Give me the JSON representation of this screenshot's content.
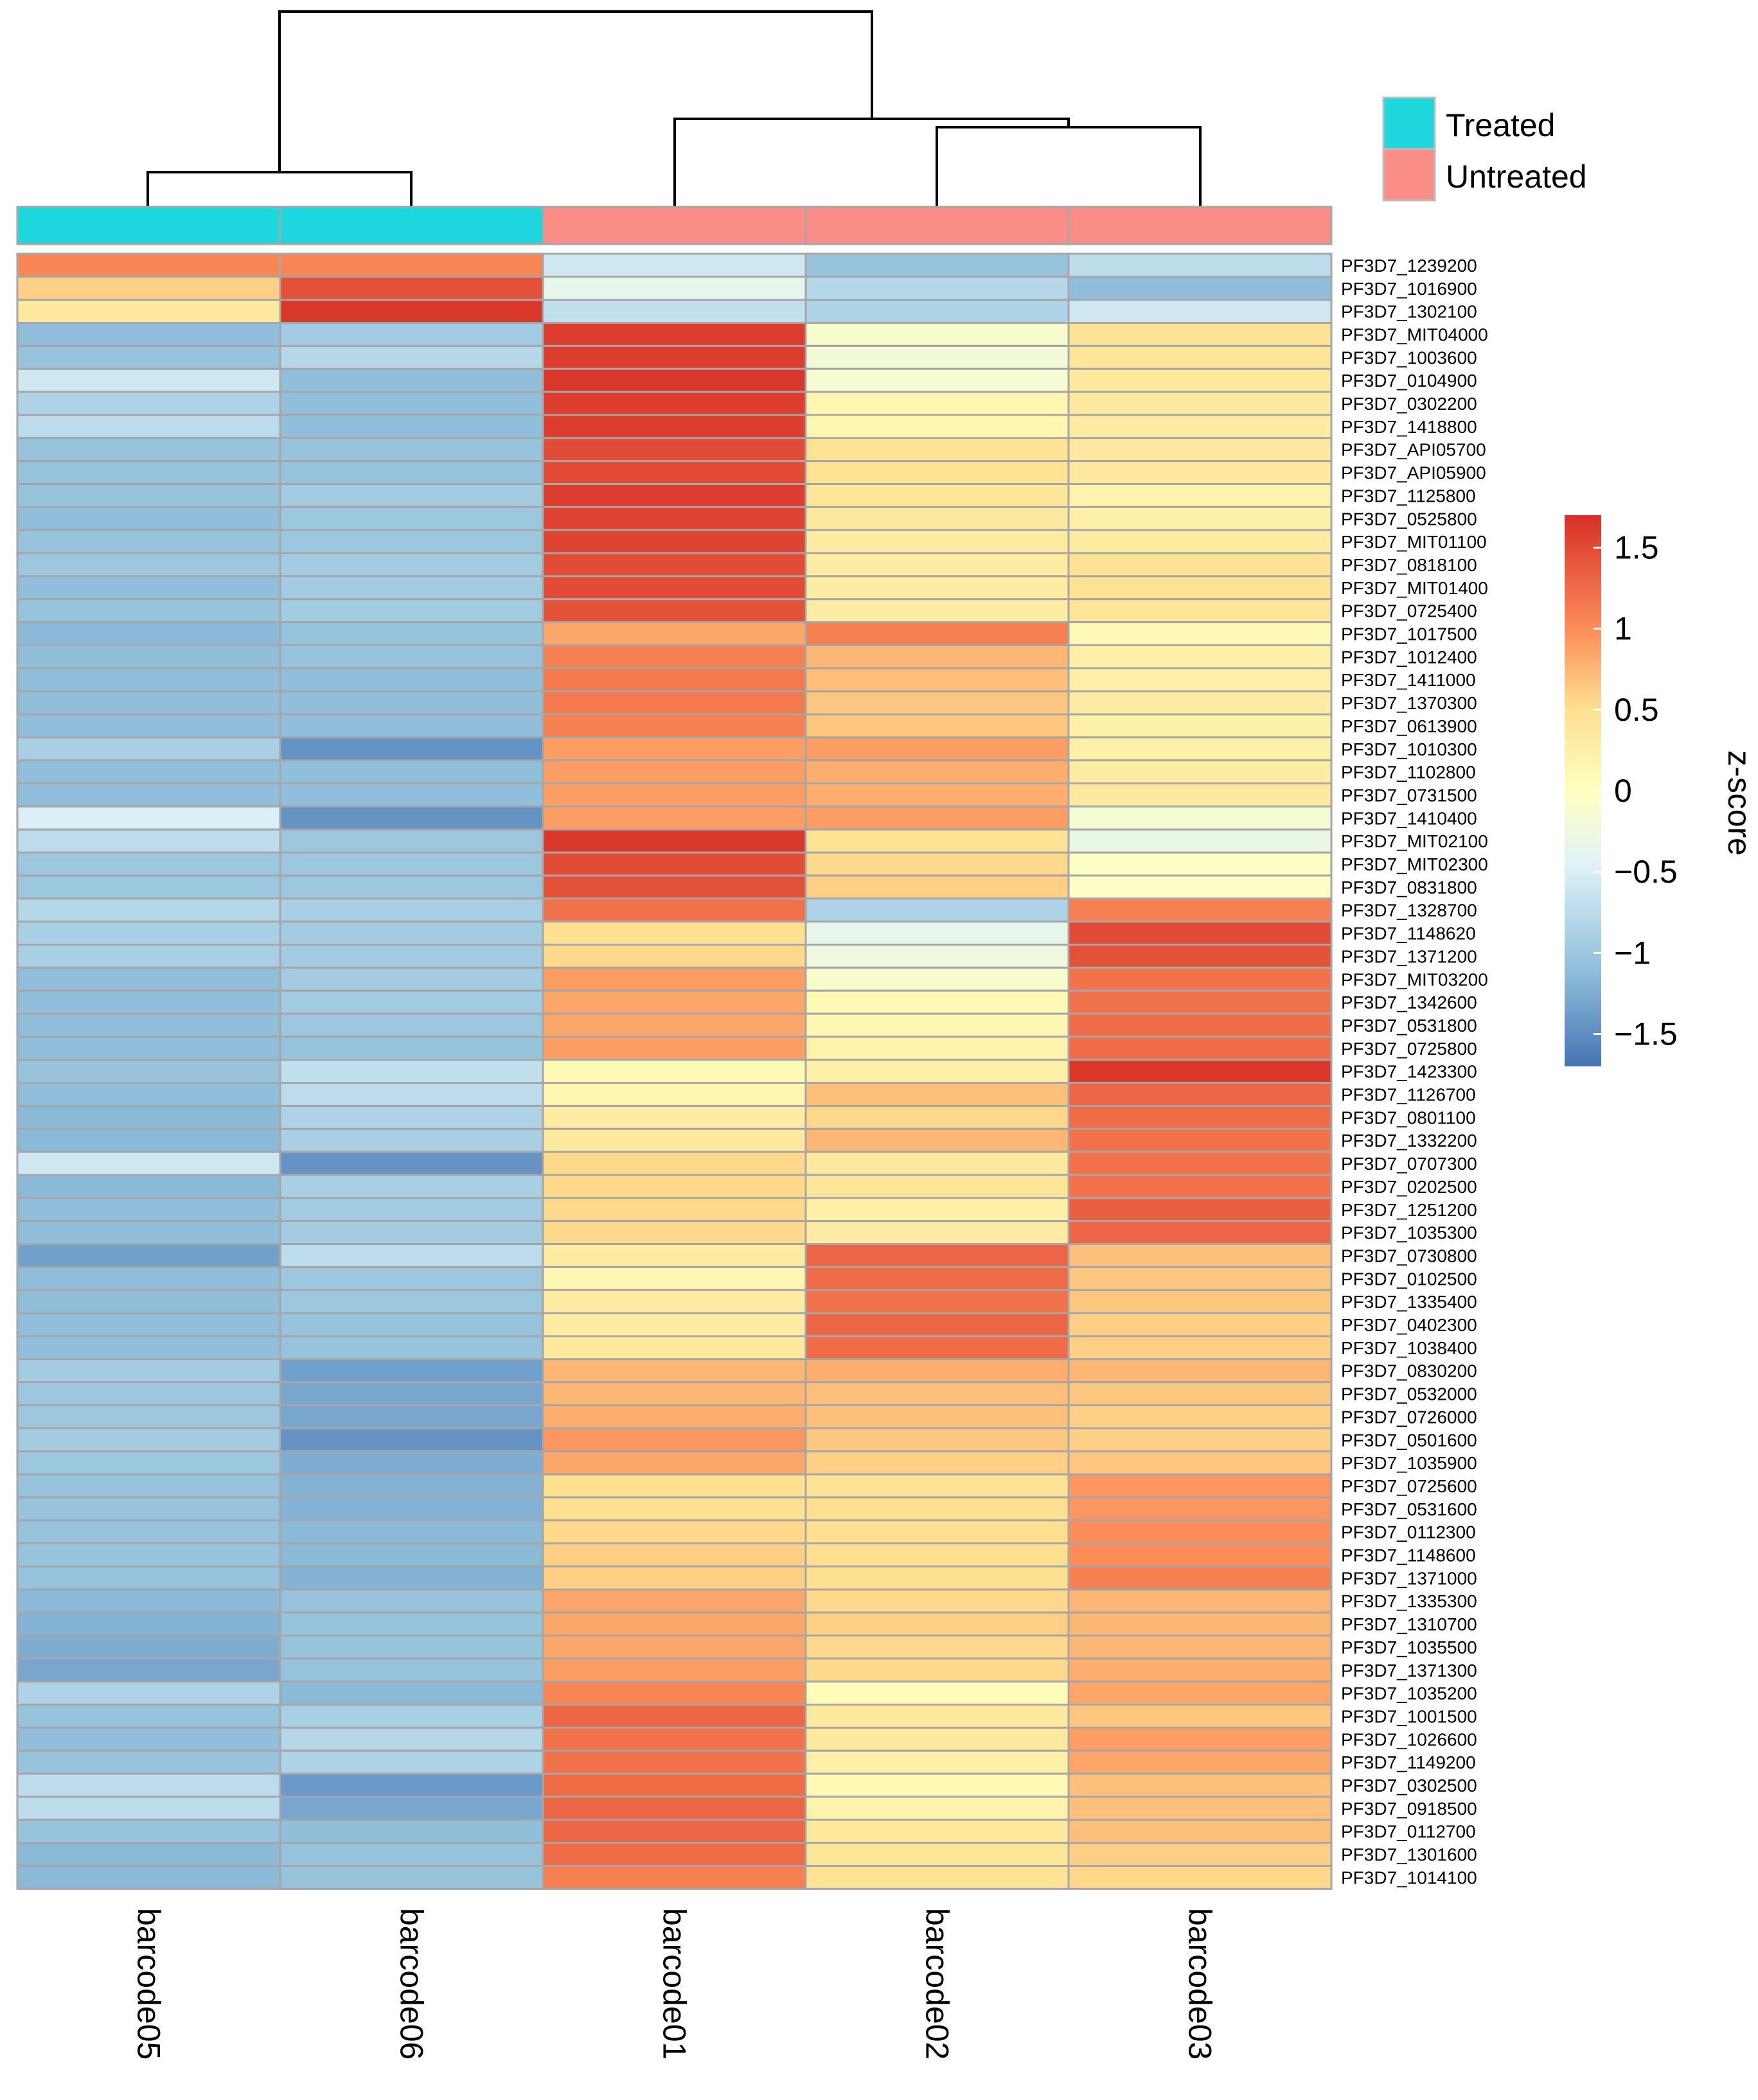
{
  "chart_data": {
    "type": "heatmap",
    "title": "",
    "value_label": "z-score",
    "columns": [
      "barcode05",
      "barcode06",
      "barcode01",
      "barcode02",
      "barcode03"
    ],
    "column_groups": [
      "Treated",
      "Treated",
      "Untreated",
      "Untreated",
      "Untreated"
    ],
    "groups": [
      {
        "name": "Treated",
        "color": "#1ED7DD"
      },
      {
        "name": "Untreated",
        "color": "#FA8E86"
      }
    ],
    "color_scale": {
      "min": -1.7,
      "max": 1.7,
      "stops": [
        {
          "v": -1.7,
          "c": "#4575B4"
        },
        {
          "v": -1.1,
          "c": "#91BFDB"
        },
        {
          "v": -0.45,
          "c": "#E0F3F8"
        },
        {
          "v": 0,
          "c": "#FFFFBF"
        },
        {
          "v": 0.5,
          "c": "#FEE090"
        },
        {
          "v": 1.0,
          "c": "#FC8D59"
        },
        {
          "v": 1.7,
          "c": "#D73027"
        }
      ],
      "ticks": [
        {
          "value": 1.5,
          "label": "1.5"
        },
        {
          "value": 1,
          "label": "1"
        },
        {
          "value": 0.5,
          "label": "0.5"
        },
        {
          "value": 0,
          "label": "0"
        },
        {
          "value": -0.5,
          "label": "−0.5"
        },
        {
          "value": -1,
          "label": "−1"
        },
        {
          "value": -1.5,
          "label": "−1.5"
        }
      ]
    },
    "rows": [
      {
        "gene": "PF3D7_1239200",
        "values": [
          1.05,
          1.05,
          -0.6,
          -1.05,
          -0.75
        ]
      },
      {
        "gene": "PF3D7_1016900",
        "values": [
          0.6,
          1.45,
          -0.35,
          -0.8,
          -1.1
        ]
      },
      {
        "gene": "PF3D7_1302100",
        "values": [
          0.35,
          1.65,
          -0.7,
          -0.85,
          -0.6
        ]
      },
      {
        "gene": "PF3D7_MIT04000",
        "values": [
          -1.1,
          -0.95,
          1.6,
          -0.1,
          0.45
        ]
      },
      {
        "gene": "PF3D7_1003600",
        "values": [
          -1.05,
          -0.8,
          1.6,
          -0.2,
          0.4
        ]
      },
      {
        "gene": "PF3D7_0104900",
        "values": [
          -0.6,
          -1.1,
          1.65,
          -0.15,
          0.35
        ]
      },
      {
        "gene": "PF3D7_0302200",
        "values": [
          -0.85,
          -1.1,
          1.6,
          0.15,
          0.35
        ]
      },
      {
        "gene": "PF3D7_1418800",
        "values": [
          -0.75,
          -1.1,
          1.6,
          0.15,
          0.3
        ]
      },
      {
        "gene": "PF3D7_API05700",
        "values": [
          -1.05,
          -1.05,
          1.5,
          0.45,
          0.35
        ]
      },
      {
        "gene": "PF3D7_API05900",
        "values": [
          -1.05,
          -1.05,
          1.5,
          0.45,
          0.35
        ]
      },
      {
        "gene": "PF3D7_1125800",
        "values": [
          -1.05,
          -0.95,
          1.6,
          0.4,
          0.2
        ]
      },
      {
        "gene": "PF3D7_0525800",
        "values": [
          -1.1,
          -1.0,
          1.55,
          0.35,
          0.25
        ]
      },
      {
        "gene": "PF3D7_MIT01100",
        "values": [
          -1.05,
          -1.0,
          1.55,
          0.3,
          0.3
        ]
      },
      {
        "gene": "PF3D7_0818100",
        "values": [
          -1.0,
          -0.95,
          1.5,
          0.3,
          0.45
        ]
      },
      {
        "gene": "PF3D7_MIT01400",
        "values": [
          -1.1,
          -0.95,
          1.5,
          0.3,
          0.45
        ]
      },
      {
        "gene": "PF3D7_0725400",
        "values": [
          -1.05,
          -0.95,
          1.45,
          0.3,
          0.4
        ]
      },
      {
        "gene": "PF3D7_1017500",
        "values": [
          -1.15,
          -1.05,
          0.85,
          1.1,
          0.1
        ]
      },
      {
        "gene": "PF3D7_1012400",
        "values": [
          -1.1,
          -1.05,
          1.1,
          0.75,
          0.25
        ]
      },
      {
        "gene": "PF3D7_1411000",
        "values": [
          -1.1,
          -1.1,
          1.15,
          0.7,
          0.25
        ]
      },
      {
        "gene": "PF3D7_1370300",
        "values": [
          -1.1,
          -1.1,
          1.15,
          0.65,
          0.3
        ]
      },
      {
        "gene": "PF3D7_0613900",
        "values": [
          -1.1,
          -1.1,
          1.1,
          0.65,
          0.25
        ]
      },
      {
        "gene": "PF3D7_1010300",
        "values": [
          -0.9,
          -1.45,
          0.9,
          0.9,
          0.25
        ]
      },
      {
        "gene": "PF3D7_1102800",
        "values": [
          -1.1,
          -1.1,
          0.9,
          0.8,
          0.3
        ]
      },
      {
        "gene": "PF3D7_0731500",
        "values": [
          -1.1,
          -1.1,
          0.9,
          0.8,
          0.35
        ]
      },
      {
        "gene": "PF3D7_1410400",
        "values": [
          -0.5,
          -1.45,
          0.9,
          0.9,
          -0.15
        ]
      },
      {
        "gene": "PF3D7_MIT02100",
        "values": [
          -0.75,
          -1.0,
          1.65,
          0.45,
          -0.3
        ]
      },
      {
        "gene": "PF3D7_MIT02300",
        "values": [
          -1.0,
          -1.0,
          1.5,
          0.55,
          -0.05
        ]
      },
      {
        "gene": "PF3D7_0831800",
        "values": [
          -1.0,
          -1.0,
          1.45,
          0.6,
          -0.05
        ]
      },
      {
        "gene": "PF3D7_1328700",
        "values": [
          -0.8,
          -0.9,
          1.2,
          -0.85,
          1.1
        ]
      },
      {
        "gene": "PF3D7_1148620",
        "values": [
          -0.9,
          -0.95,
          0.5,
          -0.35,
          1.5
        ]
      },
      {
        "gene": "PF3D7_1371200",
        "values": [
          -0.9,
          -0.95,
          0.55,
          -0.25,
          1.45
        ]
      },
      {
        "gene": "PF3D7_MIT03200",
        "values": [
          -1.1,
          -0.95,
          0.9,
          -0.1,
          1.2
        ]
      },
      {
        "gene": "PF3D7_1342600",
        "values": [
          -1.1,
          -0.95,
          0.85,
          0.1,
          1.2
        ]
      },
      {
        "gene": "PF3D7_0531800",
        "values": [
          -1.1,
          -1.0,
          0.85,
          0.15,
          1.25
        ]
      },
      {
        "gene": "PF3D7_0725800",
        "values": [
          -1.1,
          -1.05,
          0.9,
          0.2,
          1.25
        ]
      },
      {
        "gene": "PF3D7_1423300",
        "values": [
          -1.05,
          -0.7,
          0.1,
          0.25,
          1.65
        ]
      },
      {
        "gene": "PF3D7_1126700",
        "values": [
          -1.1,
          -0.75,
          0.15,
          0.7,
          1.3
        ]
      },
      {
        "gene": "PF3D7_0801100",
        "values": [
          -1.15,
          -0.85,
          0.3,
          0.55,
          1.25
        ]
      },
      {
        "gene": "PF3D7_1332200",
        "values": [
          -1.15,
          -0.9,
          0.35,
          0.75,
          1.2
        ]
      },
      {
        "gene": "PF3D7_0707300",
        "values": [
          -0.6,
          -1.45,
          0.55,
          0.35,
          1.2
        ]
      },
      {
        "gene": "PF3D7_0202500",
        "values": [
          -1.15,
          -0.9,
          0.55,
          0.4,
          1.2
        ]
      },
      {
        "gene": "PF3D7_1251200",
        "values": [
          -1.1,
          -0.95,
          0.55,
          0.25,
          1.35
        ]
      },
      {
        "gene": "PF3D7_1035300",
        "values": [
          -1.1,
          -0.95,
          0.55,
          0.3,
          1.3
        ]
      },
      {
        "gene": "PF3D7_0730800",
        "values": [
          -1.35,
          -0.75,
          0.3,
          1.3,
          0.7
        ]
      },
      {
        "gene": "PF3D7_0102500",
        "values": [
          -1.1,
          -1.0,
          0.15,
          1.25,
          0.65
        ]
      },
      {
        "gene": "PF3D7_1335400",
        "values": [
          -1.1,
          -1.0,
          0.3,
          1.2,
          0.65
        ]
      },
      {
        "gene": "PF3D7_0402300",
        "values": [
          -1.1,
          -1.05,
          0.3,
          1.3,
          0.6
        ]
      },
      {
        "gene": "PF3D7_1038400",
        "values": [
          -1.1,
          -1.05,
          0.35,
          1.25,
          0.6
        ]
      },
      {
        "gene": "PF3D7_0830200",
        "values": [
          -0.95,
          -1.35,
          0.75,
          0.8,
          0.75
        ]
      },
      {
        "gene": "PF3D7_0532000",
        "values": [
          -1.0,
          -1.3,
          0.75,
          0.7,
          0.65
        ]
      },
      {
        "gene": "PF3D7_0726000",
        "values": [
          -1.0,
          -1.3,
          0.8,
          0.7,
          0.6
        ]
      },
      {
        "gene": "PF3D7_0501600",
        "values": [
          -0.95,
          -1.45,
          0.95,
          0.65,
          0.6
        ]
      },
      {
        "gene": "PF3D7_1035900",
        "values": [
          -1.0,
          -1.25,
          0.85,
          0.6,
          0.65
        ]
      },
      {
        "gene": "PF3D7_0725600",
        "values": [
          -1.05,
          -1.2,
          0.5,
          0.45,
          0.95
        ]
      },
      {
        "gene": "PF3D7_0531600",
        "values": [
          -1.05,
          -1.2,
          0.5,
          0.5,
          0.95
        ]
      },
      {
        "gene": "PF3D7_0112300",
        "values": [
          -1.05,
          -1.15,
          0.55,
          0.5,
          1.0
        ]
      },
      {
        "gene": "PF3D7_1148600",
        "values": [
          -1.05,
          -1.15,
          0.6,
          0.5,
          1.0
        ]
      },
      {
        "gene": "PF3D7_1371000",
        "values": [
          -1.05,
          -1.2,
          0.6,
          0.5,
          1.1
        ]
      },
      {
        "gene": "PF3D7_1335300",
        "values": [
          -1.15,
          -1.05,
          0.85,
          0.55,
          0.75
        ]
      },
      {
        "gene": "PF3D7_1310700",
        "values": [
          -1.2,
          -1.05,
          0.85,
          0.6,
          0.75
        ]
      },
      {
        "gene": "PF3D7_1035500",
        "values": [
          -1.25,
          -1.05,
          0.85,
          0.55,
          0.75
        ]
      },
      {
        "gene": "PF3D7_1371300",
        "values": [
          -1.3,
          -1.05,
          0.9,
          0.55,
          0.8
        ]
      },
      {
        "gene": "PF3D7_1035200",
        "values": [
          -0.85,
          -1.15,
          1.05,
          0.05,
          0.85
        ]
      },
      {
        "gene": "PF3D7_1001500",
        "values": [
          -1.05,
          -0.9,
          1.3,
          0.35,
          0.65
        ]
      },
      {
        "gene": "PF3D7_1026600",
        "values": [
          -1.1,
          -0.8,
          1.2,
          0.35,
          0.9
        ]
      },
      {
        "gene": "PF3D7_1149200",
        "values": [
          -1.05,
          -0.85,
          1.2,
          0.25,
          0.85
        ]
      },
      {
        "gene": "PF3D7_0302500",
        "values": [
          -0.75,
          -1.4,
          1.25,
          0.1,
          0.7
        ]
      },
      {
        "gene": "PF3D7_0918500",
        "values": [
          -0.75,
          -1.3,
          1.3,
          0.2,
          0.7
        ]
      },
      {
        "gene": "PF3D7_0112700",
        "values": [
          -1.05,
          -1.1,
          1.3,
          0.35,
          0.7
        ]
      },
      {
        "gene": "PF3D7_1301600",
        "values": [
          -1.15,
          -1.05,
          1.25,
          0.4,
          0.6
        ]
      },
      {
        "gene": "PF3D7_1014100",
        "values": [
          -1.15,
          -1.05,
          1.1,
          0.45,
          0.55
        ]
      }
    ]
  }
}
